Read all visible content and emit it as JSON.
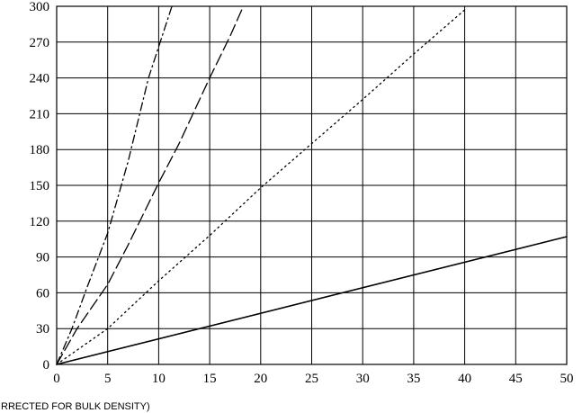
{
  "chart_data": {
    "type": "line",
    "title": "",
    "xlabel": "RRECTED FOR BULK DENSITY)",
    "ylabel": "",
    "xlim": [
      0,
      50
    ],
    "ylim": [
      0,
      300
    ],
    "x_ticks": [
      "0",
      "5",
      "10",
      "15",
      "20",
      "25",
      "30",
      "35",
      "40",
      "45",
      "50"
    ],
    "y_ticks": [
      "0",
      "30",
      "60",
      "90",
      "120",
      "150",
      "180",
      "210",
      "240",
      "270",
      "300"
    ],
    "grid": true,
    "legend": "none",
    "series": [
      {
        "style": "solid",
        "x": [
          0,
          50
        ],
        "y": [
          0,
          107
        ]
      },
      {
        "style": "dotted",
        "x": [
          0,
          5,
          10,
          15,
          20,
          25,
          30,
          35,
          40
        ],
        "y": [
          0,
          30,
          70,
          108,
          148,
          185,
          222,
          260,
          297
        ]
      },
      {
        "style": "dashed",
        "x": [
          0,
          2,
          5,
          7,
          10,
          12,
          15,
          17,
          18.3
        ],
        "y": [
          0,
          30,
          67,
          100,
          152,
          185,
          240,
          275,
          300
        ]
      },
      {
        "style": "dash-dot",
        "x": [
          0,
          1.5,
          3,
          5,
          7,
          9,
          11.3
        ],
        "y": [
          0,
          30,
          65,
          110,
          170,
          240,
          300
        ]
      }
    ]
  }
}
